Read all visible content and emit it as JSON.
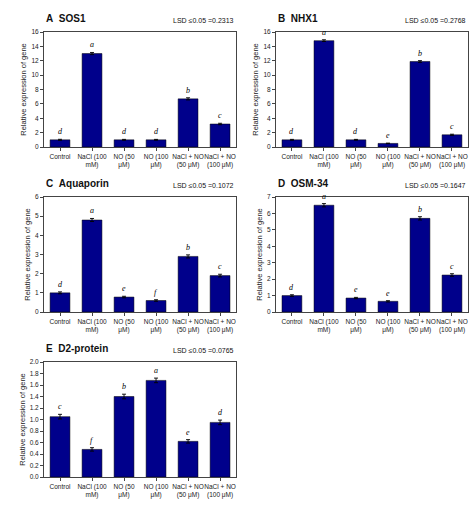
{
  "chart_data": [
    {
      "type": "bar",
      "title": "SOS1",
      "categories": [
        "Control",
        "NaCl (100\nmM)",
        "NO (50\nμM)",
        "NO (100\nμM)",
        "NaCl + NO\n(50 μM)",
        "NaCl + NO\n(100 μM)"
      ],
      "values": [
        1.0,
        13.0,
        1.0,
        1.0,
        6.7,
        3.2
      ],
      "errors": [
        0.07,
        0.15,
        0.06,
        0.06,
        0.15,
        0.1
      ],
      "color": "#00008B",
      "ylabel": "Relative expression of gene",
      "ylim": [
        0,
        16
      ],
      "yticks": [
        0,
        2,
        4,
        6,
        8,
        10,
        12,
        14,
        16
      ],
      "grid": false,
      "annotations": [
        {
          "text": "A"
        },
        {
          "text": "LSD ≤0.05 =0.2313"
        },
        {
          "category": "Control",
          "text": "d"
        },
        {
          "category": "NaCl (100\nmM)",
          "text": "a"
        },
        {
          "category": "NO (50\nμM)",
          "text": "d"
        },
        {
          "category": "NO (100\nμM)",
          "text": "d"
        },
        {
          "category": "NaCl + NO\n(50 μM)",
          "text": "b"
        },
        {
          "category": "NaCl + NO\n(100 μM)",
          "text": "c"
        }
      ]
    },
    {
      "type": "bar",
      "title": "NHX1",
      "categories": [
        "Control",
        "NaCl (100\nmM)",
        "NO (50\nμM)",
        "NO (100\nμM)",
        "NaCl + NO\n(50 μM)",
        "NaCl + NO\n(100 μM)"
      ],
      "values": [
        1.0,
        14.8,
        1.0,
        0.5,
        11.9,
        1.7
      ],
      "errors": [
        0.06,
        0.12,
        0.06,
        0.04,
        0.12,
        0.08
      ],
      "color": "#00008B",
      "ylabel": "Relative expression of gene",
      "ylim": [
        0,
        16
      ],
      "yticks": [
        0,
        2,
        4,
        6,
        8,
        10,
        12,
        14,
        16
      ],
      "grid": false,
      "annotations": [
        {
          "text": "B"
        },
        {
          "text": "LSD ≤0.05 =0.2768"
        },
        {
          "category": "Control",
          "text": "d"
        },
        {
          "category": "NaCl (100\nmM)",
          "text": "a"
        },
        {
          "category": "NO (50\nμM)",
          "text": "d"
        },
        {
          "category": "NO (100\nμM)",
          "text": "e"
        },
        {
          "category": "NaCl + NO\n(50 μM)",
          "text": "b"
        },
        {
          "category": "NaCl + NO\n(100 μM)",
          "text": "c"
        }
      ]
    },
    {
      "type": "bar",
      "title": "Aquaporin",
      "categories": [
        "Control",
        "NaCl (100\nmM)",
        "NO (50\nμM)",
        "NO (100\nμM)",
        "NaCl + NO\n(50 μM)",
        "NaCl + NO\n(100 μM)"
      ],
      "values": [
        1.0,
        4.8,
        0.78,
        0.6,
        2.9,
        1.9
      ],
      "errors": [
        0.05,
        0.08,
        0.04,
        0.04,
        0.08,
        0.07
      ],
      "color": "#00008B",
      "ylabel": "Relative expression of gene",
      "ylim": [
        0,
        6
      ],
      "yticks": [
        0,
        1,
        2,
        3,
        4,
        5,
        6
      ],
      "grid": false,
      "annotations": [
        {
          "text": "C"
        },
        {
          "text": "LSD ≤0.05 =0.1072"
        },
        {
          "category": "Control",
          "text": "d"
        },
        {
          "category": "NaCl (100\nmM)",
          "text": "a"
        },
        {
          "category": "NO (50\nμM)",
          "text": "e"
        },
        {
          "category": "NO (100\nμM)",
          "text": "f"
        },
        {
          "category": "NaCl + NO\n(50 μM)",
          "text": "b"
        },
        {
          "category": "NaCl + NO\n(100 μM)",
          "text": "c"
        }
      ]
    },
    {
      "type": "bar",
      "title": "OSM-34",
      "categories": [
        "Control",
        "NaCl (100\nmM)",
        "NO (50\nμM)",
        "NO (100\nμM)",
        "NaCl + NO\n(50 μM)",
        "NaCl + NO\n(100 μM)"
      ],
      "values": [
        1.0,
        6.5,
        0.85,
        0.65,
        5.7,
        2.25
      ],
      "errors": [
        0.05,
        0.1,
        0.04,
        0.04,
        0.1,
        0.08
      ],
      "color": "#00008B",
      "ylabel": "Relative expression of gene",
      "ylim": [
        0,
        7
      ],
      "yticks": [
        0,
        1,
        2,
        3,
        4,
        5,
        6,
        7
      ],
      "grid": false,
      "annotations": [
        {
          "text": "D"
        },
        {
          "text": "LSD ≤0.05 =0.1647"
        },
        {
          "category": "Control",
          "text": "d"
        },
        {
          "category": "NaCl (100\nmM)",
          "text": "a"
        },
        {
          "category": "NO (50\nμM)",
          "text": "e"
        },
        {
          "category": "NO (100\nμM)",
          "text": "e"
        },
        {
          "category": "NaCl + NO\n(50 μM)",
          "text": "b"
        },
        {
          "category": "NaCl + NO\n(100 μM)",
          "text": "c"
        }
      ]
    },
    {
      "type": "bar",
      "title": "D2-protein",
      "categories": [
        "Control",
        "NaCl (100\nmM)",
        "NO (50\nμM)",
        "NO (100\nμM)",
        "NaCl + NO\n(50 μM)",
        "NaCl + NO\n(100 μM)"
      ],
      "values": [
        1.05,
        0.48,
        1.4,
        1.68,
        0.62,
        0.95
      ],
      "errors": [
        0.04,
        0.03,
        0.04,
        0.04,
        0.03,
        0.04
      ],
      "color": "#00008B",
      "ylabel": "Relative expression of gene",
      "ylim": [
        0.0,
        2.0
      ],
      "yticks": [
        {
          "value": 0.0,
          "label": "0.0"
        },
        0.2,
        0.4,
        0.6,
        0.8,
        {
          "value": 1.0,
          "label": "1.0"
        },
        1.2,
        1.4,
        1.6,
        1.8,
        {
          "value": 2.0,
          "label": "2.0"
        }
      ],
      "grid": false,
      "annotations": [
        {
          "text": "E"
        },
        {
          "text": "LSD ≤0.05 =0.0765"
        },
        {
          "category": "Control",
          "text": "c"
        },
        {
          "category": "NaCl (100\nmM)",
          "text": "f"
        },
        {
          "category": "NO (50\nμM)",
          "text": "b"
        },
        {
          "category": "NO (100\nμM)",
          "text": "a"
        },
        {
          "category": "NaCl + NO\n(50 μM)",
          "text": "e"
        },
        {
          "category": "NaCl + NO\n(100 μM)",
          "text": "d"
        }
      ]
    }
  ]
}
